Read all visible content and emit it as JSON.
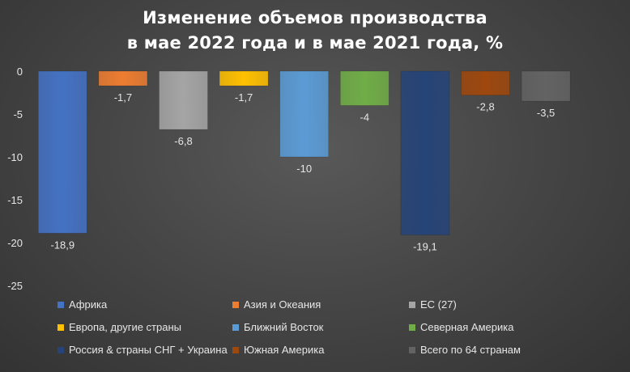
{
  "chart_data": {
    "type": "bar",
    "title": [
      "Изменение объемов производства",
      "в мае 2022 года и в мае 2021 года, %"
    ],
    "categories": [
      "Африка",
      "Азия и Океания",
      "ЕС (27)",
      "Европа, другие страны",
      "Ближний Восток",
      "Северная Америка",
      "Россия & страны СНГ + Украина",
      "Южная Америка",
      "Всего по 64 странам"
    ],
    "values": [
      -18.9,
      -1.7,
      -6.8,
      -1.7,
      -10,
      -4,
      -19.1,
      -2.8,
      -3.5
    ],
    "value_labels": [
      "-18,9",
      "-1,7",
      "-6,8",
      "-1,7",
      "-10",
      "-4",
      "-19,1",
      "-2,8",
      "-3,5"
    ],
    "colors": [
      "#4472C4",
      "#ED7D31",
      "#A5A5A5",
      "#FFC000",
      "#5B9BD5",
      "#70AD47",
      "#264478",
      "#9E480E",
      "#636363"
    ],
    "yticks": [
      0,
      -5,
      -10,
      -15,
      -20,
      -25
    ],
    "ytick_labels": [
      "0",
      "-5",
      "-10",
      "-15",
      "-20",
      "-25"
    ],
    "ylim": [
      -25,
      0
    ],
    "xlabel": "",
    "ylabel": "",
    "legend_position": "bottom",
    "grid": false
  }
}
